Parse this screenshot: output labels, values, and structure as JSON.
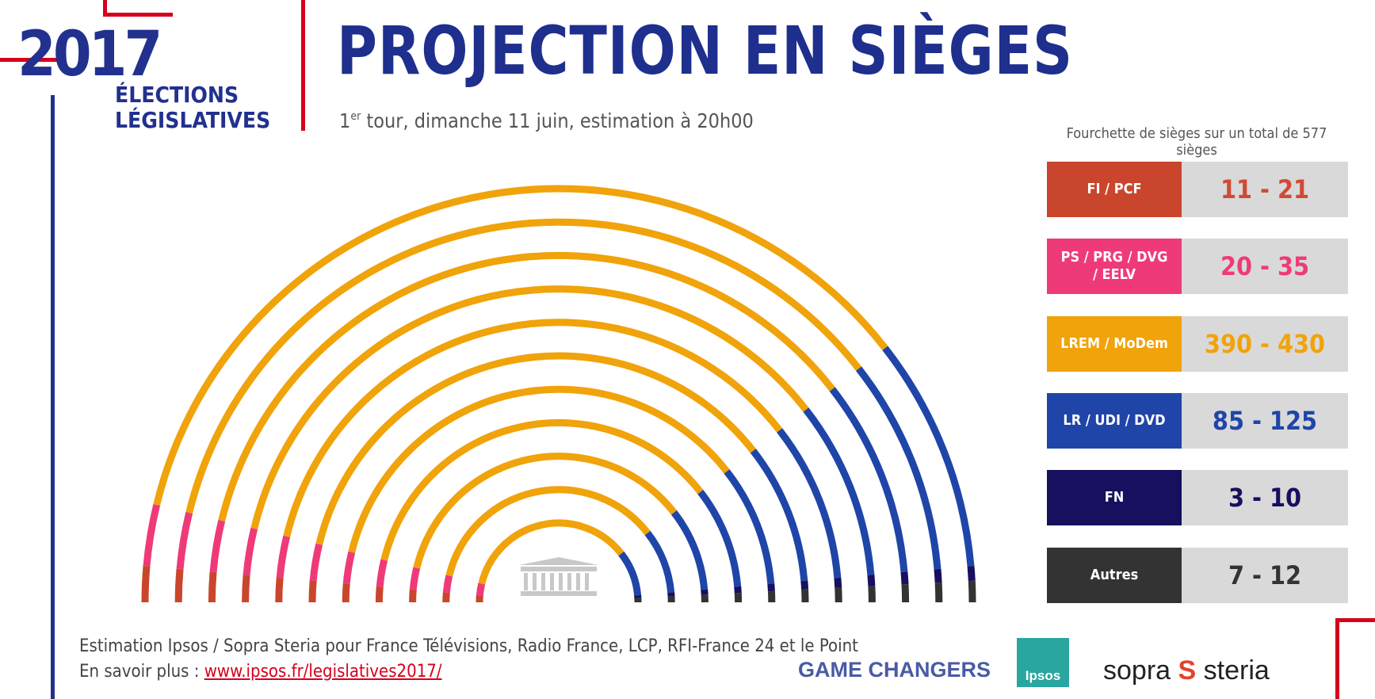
{
  "title": "PROJECTION EN SIÈGES",
  "subtitle": {
    "ordinal": "1",
    "ordinal_suffix": "er",
    "text": " tour, dimanche 11 juin, estimation à 20h00"
  },
  "logo": {
    "year": "2017",
    "line1": "ÉLECTIONS",
    "line2": "LÉGISLATIVES"
  },
  "legend_caption": "Fourchette de sièges sur un total de 577 sièges",
  "colors": {
    "fi_pcf": "#c9462c",
    "ps": "#ef3a7a",
    "lrem": "#f0a30a",
    "lr": "#1f45a8",
    "fn": "#16105e",
    "autres": "#333333",
    "value_bg": "#d9d9d9"
  },
  "chart_data": {
    "type": "hemicycle",
    "total_seats": 577,
    "parties": [
      {
        "name": "FI / PCF",
        "range": "11 - 21",
        "min": 11,
        "max": 21,
        "midpoint": 16,
        "color": "#c9462c",
        "value_color": "#d04a35"
      },
      {
        "name": "PS / PRG / DVG / EELV",
        "range": "20 - 35",
        "min": 20,
        "max": 35,
        "midpoint": 27.5,
        "color": "#ef3a7a",
        "value_color": "#ef3a7a"
      },
      {
        "name": "LREM / MoDem",
        "range": "390 - 430",
        "min": 390,
        "max": 430,
        "midpoint": 410,
        "color": "#f0a30a",
        "value_color": "#f0a30a"
      },
      {
        "name": "LR / UDI / DVD",
        "range": "85 - 125",
        "min": 85,
        "max": 125,
        "midpoint": 105,
        "color": "#1f45a8",
        "value_color": "#1f45a8"
      },
      {
        "name": "FN",
        "range": "3 - 10",
        "min": 3,
        "max": 10,
        "midpoint": 6.5,
        "color": "#16105e",
        "value_color": "#16105e"
      },
      {
        "name": "Autres",
        "range": "7 - 12",
        "min": 7,
        "max": 12,
        "midpoint": 9.5,
        "color": "#333333",
        "value_color": "#333333"
      }
    ],
    "legend": "right"
  },
  "footnote": {
    "line1": "Estimation Ipsos / Sopra Steria pour France Télévisions, Radio France, LCP, RFI-France 24 et le Point",
    "line2_prefix": "En savoir plus : ",
    "link": "www.ipsos.fr/legislatives2017/"
  },
  "logos": {
    "game_changers": "GAME CHANGERS",
    "ipsos": "Ipsos",
    "sopra": "sopra",
    "steria": "steria"
  }
}
